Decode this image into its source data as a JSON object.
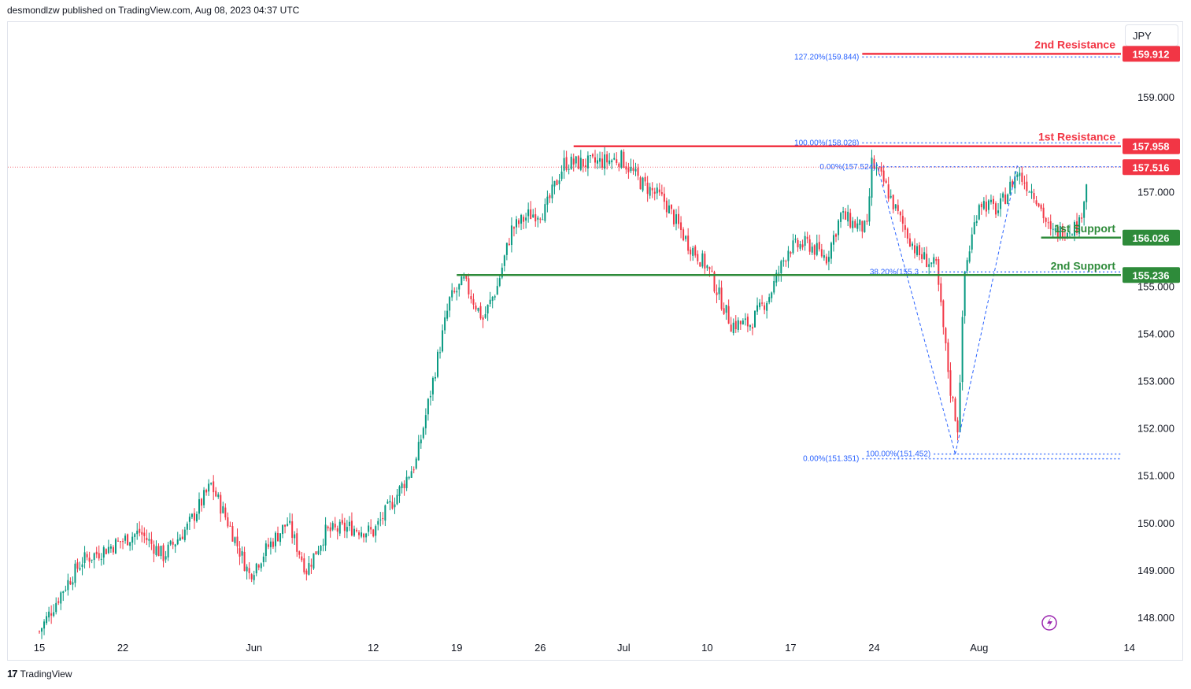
{
  "header": {
    "published_text": "desmondlzw published on TradingView.com, Aug 08, 2023 04:37 UTC"
  },
  "footer": {
    "brand": "TradingView",
    "logo_text": "17"
  },
  "currency_button": {
    "label": "JPY"
  },
  "colors": {
    "up": "#089981",
    "down": "#f23645",
    "resistance": "#f23645",
    "support": "#2e8b3a",
    "fib": "#2962ff",
    "fib_text": "#2962ff"
  },
  "chart_data": {
    "type": "candlestick",
    "currency": "JPY",
    "ylim": [
      147.6,
      160.6
    ],
    "x_ticks": [
      {
        "label": "15",
        "bar": 0
      },
      {
        "label": "22",
        "bar": 35
      },
      {
        "label": "Jun",
        "bar": 90
      },
      {
        "label": "12",
        "bar": 140
      },
      {
        "label": "19",
        "bar": 175
      },
      {
        "label": "26",
        "bar": 210
      },
      {
        "label": "Jul",
        "bar": 245
      },
      {
        "label": "10",
        "bar": 280
      },
      {
        "label": "17",
        "bar": 315
      },
      {
        "label": "24",
        "bar": 350
      },
      {
        "label": "Aug",
        "bar": 394
      },
      {
        "label": "14",
        "bar": 457
      }
    ],
    "y_ticks": [
      "148.000",
      "149.000",
      "150.000",
      "151.000",
      "152.000",
      "153.000",
      "154.000",
      "155.000",
      "157.000",
      "159.000"
    ],
    "levels": [
      {
        "name": "2nd Resistance",
        "value": 159.912,
        "label": "159.912",
        "kind": "resistance",
        "from_bar": 345
      },
      {
        "name": "1st Resistance",
        "value": 157.958,
        "label": "157.958",
        "kind": "resistance",
        "from_bar": 224
      },
      {
        "name": "1st Support",
        "value": 156.026,
        "label": "156.026",
        "kind": "support",
        "from_bar": 420
      },
      {
        "name": "2nd Support",
        "value": 155.236,
        "label": "155.236",
        "kind": "support",
        "from_bar": 175
      }
    ],
    "last_price": {
      "value": 157.516,
      "label": "157.516"
    },
    "fib_labels": [
      {
        "text": "127.20%(159.844)",
        "value": 159.844,
        "bar": 345
      },
      {
        "text": "100.00%(158.028)",
        "value": 158.028,
        "bar": 345
      },
      {
        "text": "0.00%(157.524)",
        "value": 157.524,
        "bar": 352
      },
      {
        "text": "38.20%(155.3",
        "value": 155.3,
        "bar": 370
      },
      {
        "text": "100.00%(151.452)",
        "value": 151.452,
        "bar": 375
      },
      {
        "text": "0.00%(151.351)",
        "value": 151.351,
        "bar": 345
      }
    ],
    "fib_path": [
      {
        "bar": 351,
        "value": 157.6
      },
      {
        "bar": 384,
        "value": 151.45
      },
      {
        "bar": 410,
        "value": 157.55
      }
    ],
    "anchors": [
      {
        "bar": 0,
        "value": 147.7
      },
      {
        "bar": 10,
        "value": 148.6
      },
      {
        "bar": 18,
        "value": 149.2
      },
      {
        "bar": 30,
        "value": 149.5
      },
      {
        "bar": 42,
        "value": 149.8
      },
      {
        "bar": 52,
        "value": 149.3
      },
      {
        "bar": 62,
        "value": 149.9
      },
      {
        "bar": 72,
        "value": 150.8
      },
      {
        "bar": 80,
        "value": 149.9
      },
      {
        "bar": 88,
        "value": 148.9
      },
      {
        "bar": 96,
        "value": 149.5
      },
      {
        "bar": 104,
        "value": 150.0
      },
      {
        "bar": 112,
        "value": 149.0
      },
      {
        "bar": 120,
        "value": 149.8
      },
      {
        "bar": 130,
        "value": 149.9
      },
      {
        "bar": 140,
        "value": 149.8
      },
      {
        "bar": 150,
        "value": 150.6
      },
      {
        "bar": 158,
        "value": 151.3
      },
      {
        "bar": 165,
        "value": 153.0
      },
      {
        "bar": 172,
        "value": 154.7
      },
      {
        "bar": 178,
        "value": 155.1
      },
      {
        "bar": 186,
        "value": 154.3
      },
      {
        "bar": 192,
        "value": 155.0
      },
      {
        "bar": 198,
        "value": 156.2
      },
      {
        "bar": 205,
        "value": 156.5
      },
      {
        "bar": 212,
        "value": 156.6
      },
      {
        "bar": 220,
        "value": 157.6
      },
      {
        "bar": 232,
        "value": 157.6
      },
      {
        "bar": 244,
        "value": 157.7
      },
      {
        "bar": 252,
        "value": 157.2
      },
      {
        "bar": 262,
        "value": 156.8
      },
      {
        "bar": 272,
        "value": 155.9
      },
      {
        "bar": 280,
        "value": 155.4
      },
      {
        "bar": 290,
        "value": 154.2
      },
      {
        "bar": 298,
        "value": 154.2
      },
      {
        "bar": 306,
        "value": 154.8
      },
      {
        "bar": 314,
        "value": 155.8
      },
      {
        "bar": 322,
        "value": 155.9
      },
      {
        "bar": 330,
        "value": 155.6
      },
      {
        "bar": 336,
        "value": 156.5
      },
      {
        "bar": 342,
        "value": 156.3
      },
      {
        "bar": 347,
        "value": 156.2
      },
      {
        "bar": 349,
        "value": 157.6
      },
      {
        "bar": 354,
        "value": 157.2
      },
      {
        "bar": 360,
        "value": 156.5
      },
      {
        "bar": 368,
        "value": 155.7
      },
      {
        "bar": 376,
        "value": 155.4
      },
      {
        "bar": 382,
        "value": 152.8
      },
      {
        "bar": 385,
        "value": 152.0
      },
      {
        "bar": 388,
        "value": 155.3
      },
      {
        "bar": 394,
        "value": 156.8
      },
      {
        "bar": 402,
        "value": 156.6
      },
      {
        "bar": 410,
        "value": 157.4
      },
      {
        "bar": 418,
        "value": 156.9
      },
      {
        "bar": 424,
        "value": 156.1
      },
      {
        "bar": 430,
        "value": 156.2
      },
      {
        "bar": 436,
        "value": 156.3
      },
      {
        "bar": 440,
        "value": 157.5
      }
    ]
  }
}
